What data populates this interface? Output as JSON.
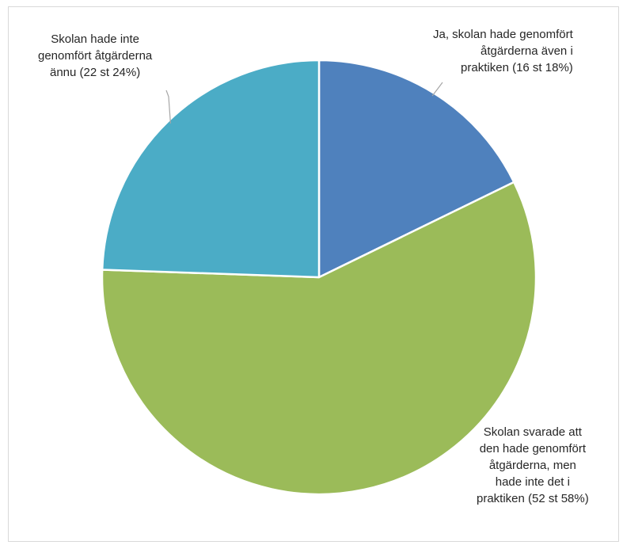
{
  "chart_data": {
    "type": "pie",
    "title": "",
    "slices": [
      {
        "label_lines": [
          "Ja, skolan hade genomfört",
          "åtgärderna även i",
          "praktiken (16 st 18%)"
        ],
        "value": 16,
        "percent": 18,
        "color": "#4f81bd"
      },
      {
        "label_lines": [
          "Skolan svarade att",
          "den hade genomfört",
          "åtgärderna, men",
          "hade inte det i",
          "praktiken (52 st 58%)"
        ],
        "value": 52,
        "percent": 58,
        "color": "#9bbb59"
      },
      {
        "label_lines": [
          "Skolan hade inte",
          "genomfört åtgärderna",
          "ännu (22 st 24%)"
        ],
        "value": 22,
        "percent": 24,
        "color": "#4bacc6"
      }
    ],
    "start_angle_deg": 0,
    "direction": "clockwise",
    "legend": "none",
    "slice_border_color": "#ffffff"
  }
}
